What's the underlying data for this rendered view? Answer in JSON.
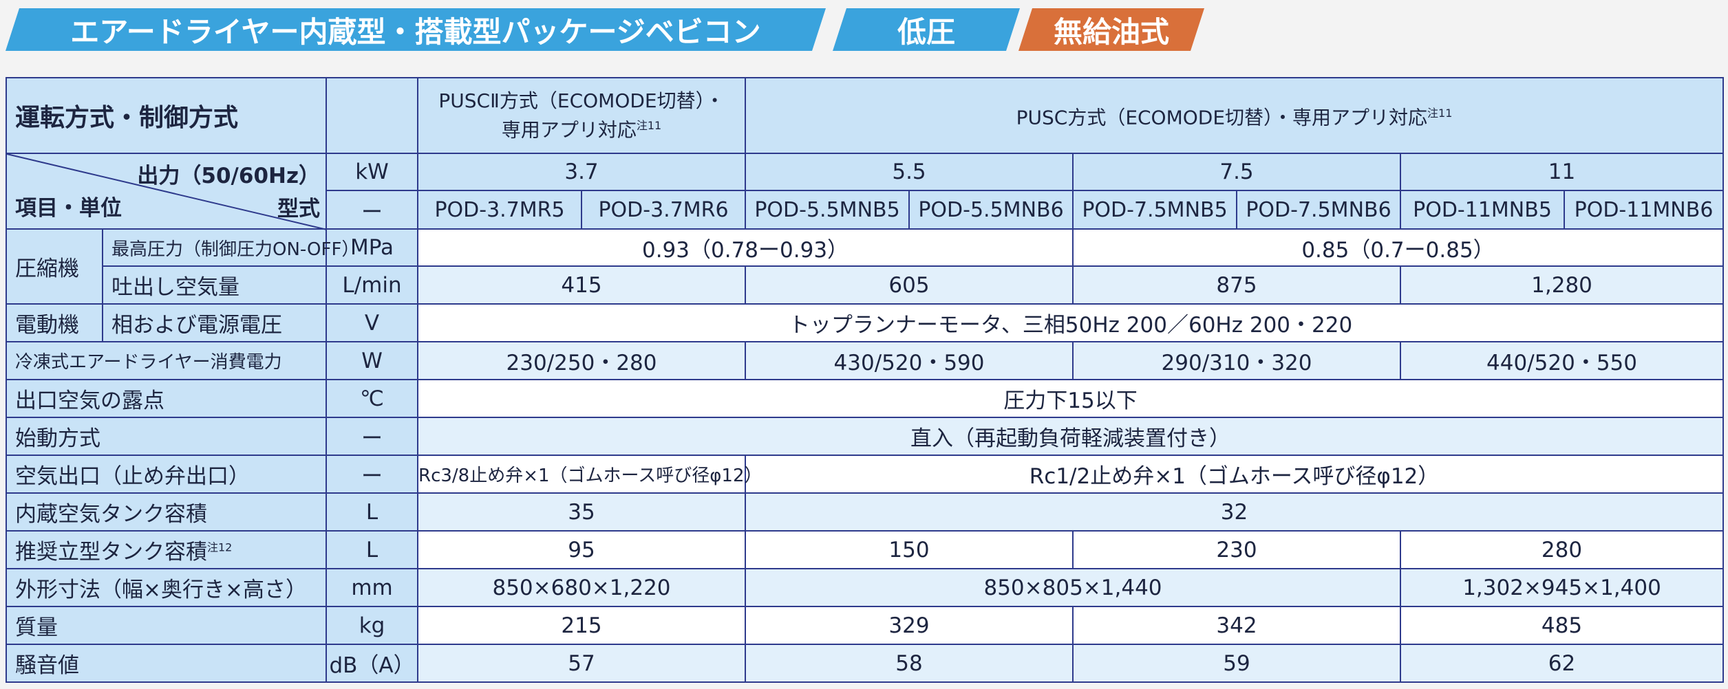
{
  "banner": {
    "main": "エアードライヤー内蔵型・搭載型パッケージベビコン",
    "pressure": "低圧",
    "oil": "無給油式"
  },
  "colors": {
    "banner_blue": "#3aa3dd",
    "banner_orange": "#d9703a",
    "header_bg": "#c9e3f7",
    "border": "#2e3a8c"
  },
  "table": {
    "header": {
      "title": "運転方式・制御方式",
      "pusc2": "PUSCⅡ方式（ECOMODE切替）・",
      "pusc2_line2": "専用アプリ対応",
      "pusc": "PUSC方式（ECOMODE切替）・専用アプリ対応",
      "note11": "注11",
      "output_label": "出力（50/60Hz）",
      "model_label": "型式",
      "item_label": "項目・単位",
      "kw_unit": "kW",
      "dash": "ー",
      "outputs": [
        "3.7",
        "5.5",
        "7.5",
        "11"
      ],
      "models": [
        "POD-3.7MR5",
        "POD-3.7MR6",
        "POD-5.5MNB5",
        "POD-5.5MNB6",
        "POD-7.5MNB5",
        "POD-7.5MNB6",
        "POD-11MNB5",
        "POD-11MNB6"
      ]
    },
    "rows": {
      "compressor": "圧縮機",
      "max_pressure": {
        "label": "最高圧力（制御圧力ON-OFF）",
        "unit": "MPa",
        "v1": "0.93（0.78ー0.93）",
        "v2": "0.85（0.7ー0.85）"
      },
      "air_volume": {
        "label": "吐出し空気量",
        "unit": "L/min",
        "values": [
          "415",
          "605",
          "875",
          "1,280"
        ]
      },
      "motor": {
        "label": "電動機",
        "sub": "相および電源電圧",
        "unit": "V",
        "value": "トップランナーモータ、三相50Hz 200／60Hz 200・220"
      },
      "dryer_power": {
        "label": "冷凍式エアードライヤー消費電力",
        "unit": "W",
        "values": [
          "230/250・280",
          "430/520・590",
          "290/310・320",
          "440/520・550"
        ]
      },
      "dew_point": {
        "label": "出口空気の露点",
        "unit": "℃",
        "value": "圧力下15以下"
      },
      "start_method": {
        "label": "始動方式",
        "unit": "ー",
        "value": "直入（再起動負荷軽減装置付き）"
      },
      "air_outlet": {
        "label": "空気出口（止め弁出口）",
        "unit": "ー",
        "v1": "Rc3/8止め弁×1（ゴムホース呼び径φ12）",
        "v2": "Rc1/2止め弁×1（ゴムホース呼び径φ12）"
      },
      "tank": {
        "label": "内蔵空気タンク容積",
        "unit": "L",
        "v1": "35",
        "v2": "32"
      },
      "rec_tank": {
        "label": "推奨立型タンク容積",
        "note": "注12",
        "unit": "L",
        "values": [
          "95",
          "150",
          "230",
          "280"
        ]
      },
      "dimensions": {
        "label": "外形寸法（幅×奥行き×高さ）",
        "unit": "mm",
        "v1": "850×680×1,220",
        "v2": "850×805×1,440",
        "v3": "1,302×945×1,400"
      },
      "mass": {
        "label": "質量",
        "unit": "kg",
        "values": [
          "215",
          "329",
          "342",
          "485"
        ]
      },
      "noise": {
        "label": "騒音値",
        "unit": "dB（A）",
        "values": [
          "57",
          "58",
          "59",
          "62"
        ]
      }
    }
  }
}
